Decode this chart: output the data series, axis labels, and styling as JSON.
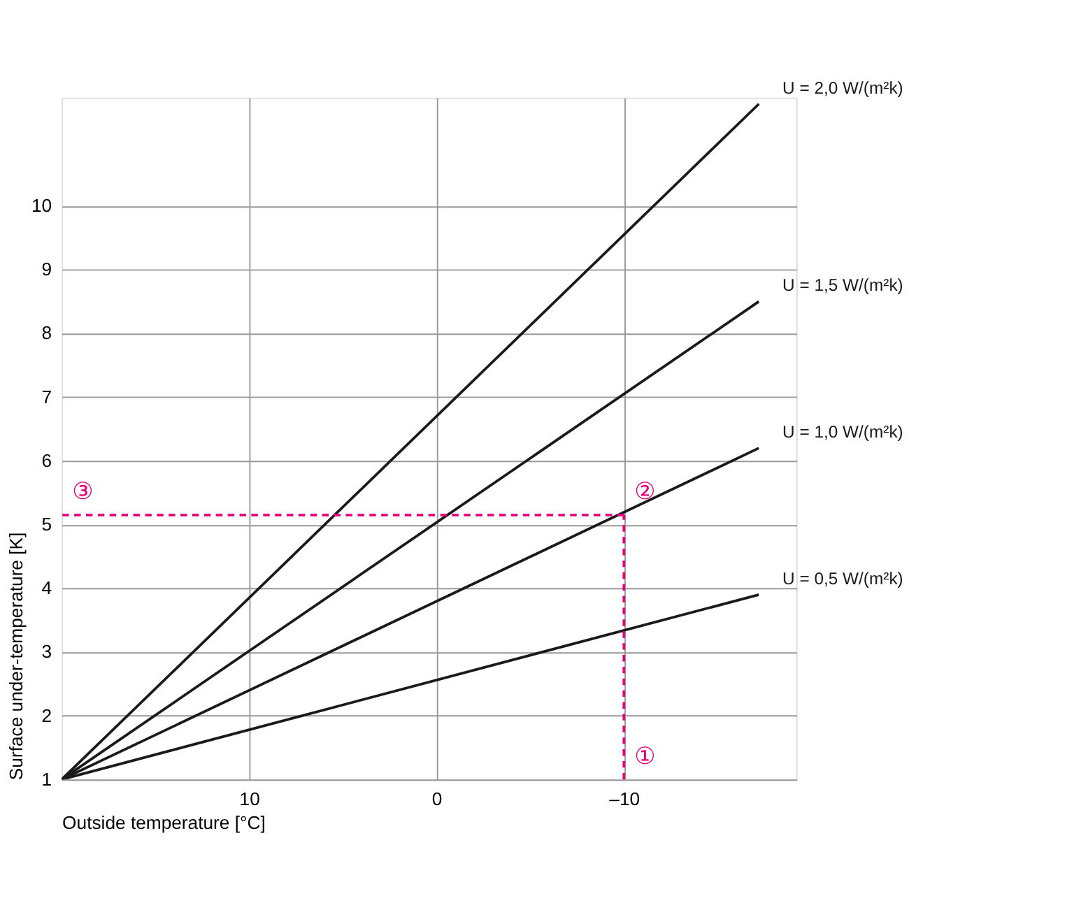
{
  "chart_data": {
    "type": "line",
    "xlabel": "Outside temperature [°C]",
    "ylabel": "Surface under-temperature [K]",
    "xlim": [
      20,
      -19.2
    ],
    "ylim": [
      1,
      11.7
    ],
    "xticks": [
      10,
      0,
      {
        "value": -10,
        "label": "–10"
      }
    ],
    "yticks": [
      1,
      2,
      3,
      4,
      5,
      6,
      7,
      8,
      9,
      10
    ],
    "grid": true,
    "marker": "none",
    "series": [
      {
        "name": "U = 2,0 W/(m²k)",
        "color": "#1a1a1a",
        "x": [
          20,
          -17.2
        ],
        "values": [
          1,
          11.6
        ]
      },
      {
        "name": "U = 1,5 W/(m²k)",
        "color": "#1a1a1a",
        "x": [
          20,
          -17.2
        ],
        "values": [
          1,
          8.5
        ]
      },
      {
        "name": "U = 1,0 W/(m²k)",
        "color": "#1a1a1a",
        "x": [
          20,
          -17.2
        ],
        "values": [
          1,
          6.2
        ]
      },
      {
        "name": "U = 0,5 W/(m²k)",
        "color": "#1a1a1a",
        "x": [
          20,
          -17.2
        ],
        "values": [
          1,
          3.9
        ]
      },
      {
        "color": "#e6007e",
        "line_style": "dashed",
        "x": [
          -10,
          -10
        ],
        "values": [
          1,
          5.15
        ]
      },
      {
        "color": "#e6007e",
        "line_style": "dashed",
        "x": [
          -10,
          20
        ],
        "values": [
          5.15,
          5.15
        ]
      }
    ],
    "annotations": [
      "①",
      "②",
      "③"
    ]
  }
}
